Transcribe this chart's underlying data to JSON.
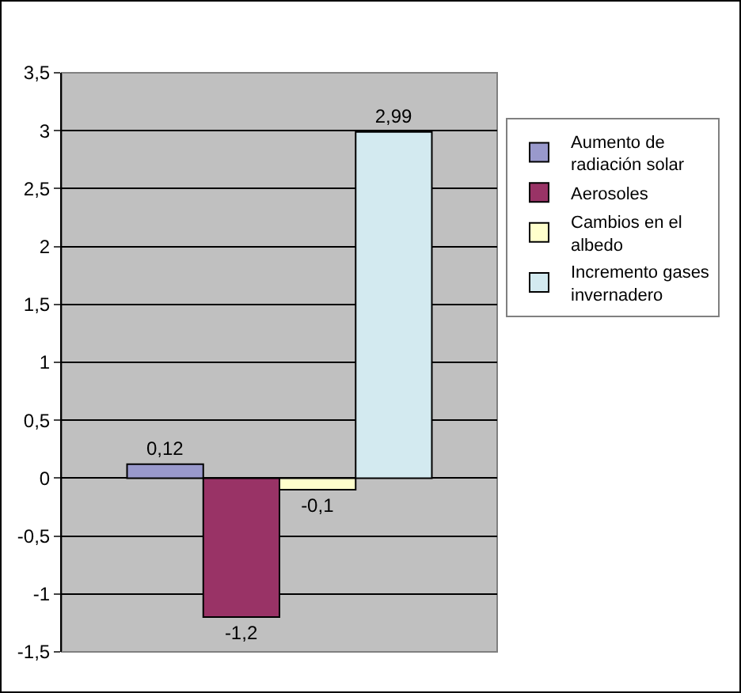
{
  "chart_data": {
    "type": "bar",
    "categories": [
      null
    ],
    "series": [
      {
        "name": "Aumento de radiación solar",
        "color": "#9999cc",
        "values": [
          0.12
        ],
        "value_labels": [
          "0,12"
        ]
      },
      {
        "name": "Aerosoles",
        "color": "#993366",
        "values": [
          -1.2
        ],
        "value_labels": [
          "-1,2"
        ]
      },
      {
        "name": "Cambios en el albedo",
        "color": "#ffffcc",
        "values": [
          -0.1
        ],
        "value_labels": [
          "-0,1"
        ]
      },
      {
        "name": "Incremento gases invernadero",
        "color": "#d3eaf0",
        "values": [
          2.99
        ],
        "value_labels": [
          "2,99"
        ]
      }
    ],
    "ylim": [
      -1.5,
      3.5
    ],
    "yticks": [
      {
        "value": -1.5,
        "label": "-1,5"
      },
      {
        "value": -1,
        "label": "-1"
      },
      {
        "value": -0.5,
        "label": "-0,5"
      },
      {
        "value": 0,
        "label": "0"
      },
      {
        "value": 0.5,
        "label": "0,5"
      },
      {
        "value": 1,
        "label": "1"
      },
      {
        "value": 1.5,
        "label": "1,5"
      },
      {
        "value": 2,
        "label": "2"
      },
      {
        "value": 2.5,
        "label": "2,5"
      },
      {
        "value": 3,
        "label": "3"
      },
      {
        "value": 3.5,
        "label": "3,5"
      }
    ],
    "grid": "y",
    "legend": "right"
  }
}
